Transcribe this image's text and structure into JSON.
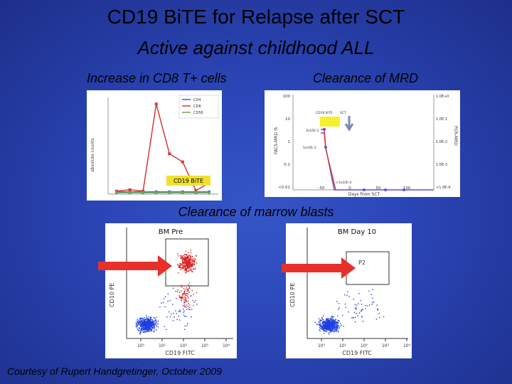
{
  "slide": {
    "title": "CD19 BiTE for Relapse after SCT",
    "subtitle": "Active against childhood ALL",
    "label_cd8": "Increase in CD8 T+ cells",
    "label_mrd": "Clearance of MRD",
    "label_blasts": "Clearance of marrow blasts",
    "credit": "Courtesy of Rupert Handgretinger, October 2009"
  },
  "colors": {
    "background": "#2a44b4",
    "arrow": "#e8302a",
    "flow_cells_pre": "#d62020",
    "flow_cells_blue": "#1f3fe0"
  },
  "chart_data": [
    {
      "type": "line",
      "ylabel": "absolute counts",
      "legend": [
        "CD4",
        "CD8",
        "CD56"
      ],
      "legend_position": "top-right",
      "annotation": "CD19 BiTE",
      "series": [
        {
          "name": "CD4",
          "values": [
            30,
            30,
            30,
            30,
            30,
            30,
            30,
            30
          ]
        },
        {
          "name": "CD8",
          "values": [
            40,
            60,
            40,
            1230,
            550,
            440,
            50,
            150
          ]
        },
        {
          "name": "CD56",
          "values": [
            20,
            20,
            20,
            20,
            20,
            20,
            20,
            20
          ]
        }
      ]
    },
    {
      "type": "line",
      "xlabel": "Days from SCT",
      "ylabel": "FACS-MRD %",
      "y2label": "PCR-MRD",
      "x_ticks": [
        "-50",
        "0",
        "50",
        "100"
      ],
      "y_ticks": [
        "100",
        "10",
        "1",
        "0.1",
        "<0.01"
      ],
      "y2_ticks": [
        "1.0E+0",
        "1.0E-1",
        "1.0E-2",
        "1.0E-3",
        "<1.0E-4"
      ],
      "legend": [
        "CD19 BiTE",
        "SCT"
      ],
      "annotations": [
        "3x10E-2",
        "5x10E-3",
        "<1x10E-4"
      ]
    },
    {
      "type": "scatter",
      "title": "BM Pre",
      "xlabel": "CD19 FITC",
      "ylabel": "CD10 PE",
      "x_ticks": [
        "10⁰",
        "10¹",
        "10²",
        "10³",
        "10⁴"
      ]
    },
    {
      "type": "scatter",
      "title": "BM Day 10",
      "xlabel": "CD19 FITC",
      "ylabel": "CD10 PE",
      "gate_label": "P2",
      "x_ticks": [
        "10⁰",
        "10¹",
        "10²",
        "10³",
        "10⁴"
      ]
    }
  ]
}
